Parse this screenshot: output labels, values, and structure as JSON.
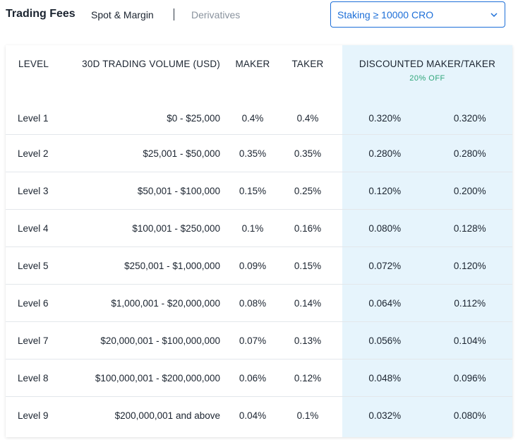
{
  "header": {
    "title": "Trading Fees",
    "tabs": [
      {
        "label": "Spot & Margin",
        "active": true
      },
      {
        "label": "Derivatives",
        "active": false
      }
    ],
    "staking_select": {
      "value": "Staking ≥ 10000 CRO",
      "icon": "chevron-down-icon"
    }
  },
  "table": {
    "columns": {
      "level": "LEVEL",
      "volume": "30D TRADING VOLUME (USD)",
      "maker": "MAKER",
      "taker": "TAKER",
      "discounted": "DISCOUNTED MAKER/TAKER",
      "discount_badge": "20% OFF"
    },
    "rows": [
      {
        "level": "Level 1",
        "volume": "$0 - $25,000",
        "maker": "0.4%",
        "taker": "0.4%",
        "disc_maker": "0.320%",
        "disc_taker": "0.320%"
      },
      {
        "level": "Level 2",
        "volume": "$25,001 - $50,000",
        "maker": "0.35%",
        "taker": "0.35%",
        "disc_maker": "0.280%",
        "disc_taker": "0.280%"
      },
      {
        "level": "Level 3",
        "volume": "$50,001 - $100,000",
        "maker": "0.15%",
        "taker": "0.25%",
        "disc_maker": "0.120%",
        "disc_taker": "0.200%"
      },
      {
        "level": "Level 4",
        "volume": "$100,001 - $250,000",
        "maker": "0.1%",
        "taker": "0.16%",
        "disc_maker": "0.080%",
        "disc_taker": "0.128%"
      },
      {
        "level": "Level 5",
        "volume": "$250,001 - $1,000,000",
        "maker": "0.09%",
        "taker": "0.15%",
        "disc_maker": "0.072%",
        "disc_taker": "0.120%"
      },
      {
        "level": "Level 6",
        "volume": "$1,000,001 - $20,000,000",
        "maker": "0.08%",
        "taker": "0.14%",
        "disc_maker": "0.064%",
        "disc_taker": "0.112%"
      },
      {
        "level": "Level 7",
        "volume": "$20,000,001 - $100,000,000",
        "maker": "0.07%",
        "taker": "0.13%",
        "disc_maker": "0.056%",
        "disc_taker": "0.104%"
      },
      {
        "level": "Level 8",
        "volume": "$100,000,001 - $200,000,000",
        "maker": "0.06%",
        "taker": "0.12%",
        "disc_maker": "0.048%",
        "disc_taker": "0.096%"
      },
      {
        "level": "Level 9",
        "volume": "$200,000,001 and above",
        "maker": "0.04%",
        "taker": "0.1%",
        "disc_maker": "0.032%",
        "disc_taker": "0.080%"
      }
    ]
  },
  "colors": {
    "accent": "#1d6fd8",
    "discount_bg": "#e6f4fc",
    "discount_badge": "#2fa67a"
  }
}
